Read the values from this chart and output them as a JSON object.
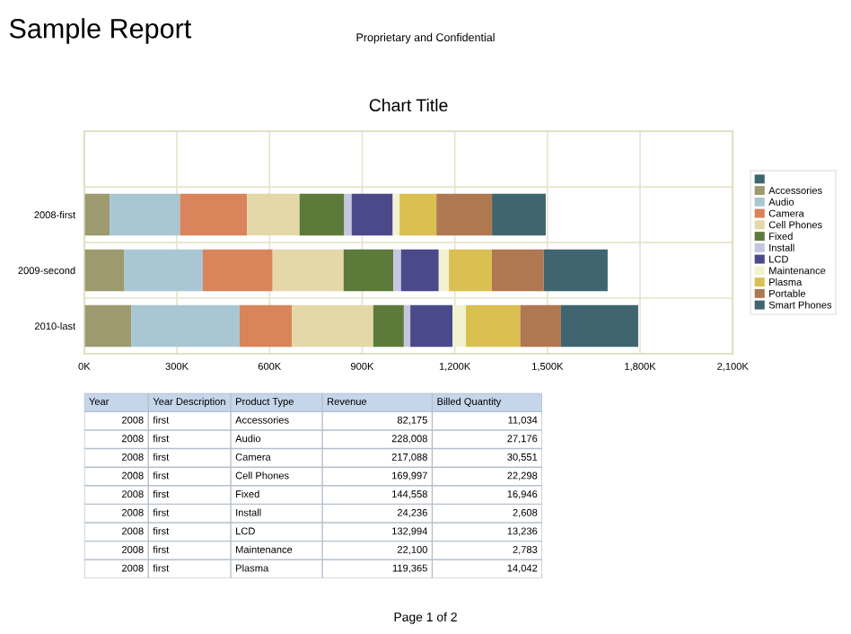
{
  "chart_data": [
    {
      "type": "bar",
      "orientation": "horizontal",
      "stacked": true,
      "title": "Chart Title",
      "subtitle": "Proprietary and Confidential",
      "annotations": [
        "Sample Report",
        "Page 1 of 2"
      ],
      "categories": [
        null,
        "2008-first",
        "2009-second",
        "2010-last"
      ],
      "xlim": [
        0,
        2100000
      ],
      "xticks": [
        {
          "value": 0,
          "label": "0K"
        },
        {
          "value": 300000,
          "label": "300K"
        },
        {
          "value": 600000,
          "label": "600K"
        },
        {
          "value": 900000,
          "label": "900K"
        },
        {
          "value": 1200000,
          "label": "1,200K"
        },
        {
          "value": 1500000,
          "label": "1,500K"
        },
        {
          "value": 1800000,
          "label": "1,800K"
        },
        {
          "value": 2100000,
          "label": "2,100K"
        }
      ],
      "grid": true,
      "legend": "right",
      "series": [
        {
          "color": "#3e6670",
          "values": [
            null,
            null,
            null,
            null
          ]
        },
        {
          "name": "Accessories",
          "color": "#9c9a6e",
          "values": [
            null,
            82175,
            130000,
            153000
          ]
        },
        {
          "name": "Audio",
          "color": "#a9c6d3",
          "values": [
            null,
            228008,
            254000,
            350000
          ]
        },
        {
          "name": "Camera",
          "color": "#d9845a",
          "values": [
            null,
            217088,
            226000,
            170000
          ]
        },
        {
          "name": "Cell Phones",
          "color": "#e5d8a8",
          "values": [
            null,
            169997,
            230000,
            263000
          ]
        },
        {
          "name": "Fixed",
          "color": "#5e7a3a",
          "values": [
            null,
            144558,
            161000,
            99000
          ]
        },
        {
          "name": "Install",
          "color": "#c5c6e0",
          "values": [
            null,
            24236,
            25000,
            21000
          ]
        },
        {
          "name": "LCD",
          "color": "#4a4a8a",
          "values": [
            null,
            132994,
            122000,
            137000
          ]
        },
        {
          "name": "Maintenance",
          "color": "#f2f2d0",
          "values": [
            null,
            22100,
            33000,
            43000
          ]
        },
        {
          "name": "Plasma",
          "color": "#d9c050",
          "values": [
            null,
            119365,
            139000,
            176000
          ]
        },
        {
          "name": "Portable",
          "color": "#b07850",
          "values": [
            null,
            180000,
            168000,
            132000
          ]
        },
        {
          "name": "Smart Phones",
          "color": "#3f6670",
          "values": [
            null,
            174000,
            207000,
            250000
          ]
        }
      ]
    },
    {
      "type": "other",
      "categories": [
        "Year",
        "Year Description",
        "Product Type",
        "Revenue",
        "Billed Quantity"
      ],
      "annotations": [
        "2008",
        "first",
        "Accessories",
        "82,175",
        "11,034",
        "2008",
        "first",
        "Audio",
        "228,008",
        "27,176",
        "2008",
        "first",
        "Camera",
        "217,088",
        "30,551",
        "2008",
        "first",
        "Cell Phones",
        "169,997",
        "22,298",
        "2008",
        "first",
        "Fixed",
        "144,558",
        "16,946",
        "2008",
        "first",
        "Install",
        "24,236",
        "2,608",
        "2008",
        "first",
        "LCD",
        "132,994",
        "13,236",
        "2008",
        "first",
        "Maintenance",
        "22,100",
        "2,783",
        "2008",
        "first",
        "Plasma",
        "119,365",
        "14,042"
      ]
    }
  ]
}
